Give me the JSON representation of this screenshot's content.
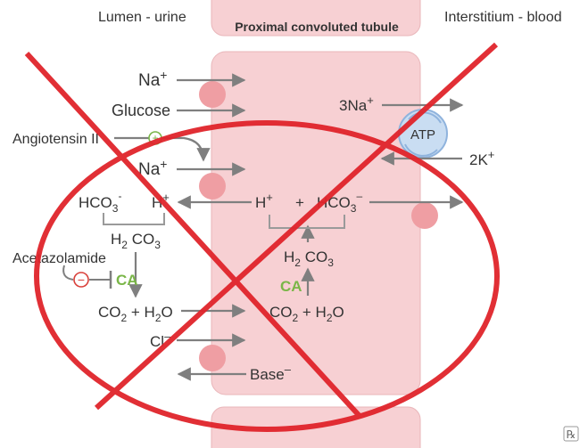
{
  "header": {
    "lumen": "Lumen - urine",
    "tubule": "Proximal convoluted tubule",
    "interstitium": "Interstitium - blood"
  },
  "labels": {
    "na1": "Na",
    "na1_sup": "+",
    "glucose": "Glucose",
    "angiotensin": "Angiotensin II",
    "na2": "Na",
    "na2_sup": "+",
    "hco3_left": "HCO",
    "hco3_left_sub": "3",
    "hco3_left_sup": "-",
    "h_left": "H",
    "h_left_sup": "+",
    "h2co3_left_a": "H",
    "h2co3_left_b": "2",
    "h2co3_left_c": " CO",
    "h2co3_left_d": "3",
    "acetazolamide": "Acetazolamide",
    "ca_left": "CA",
    "co2_left_a": "CO",
    "co2_left_b": "2",
    "co2_left_c": " + H",
    "co2_left_d": "2",
    "co2_left_e": "O",
    "cl": "Cl",
    "cl_sup": "–",
    "base": "Base",
    "base_sup": "–",
    "h_right": "H",
    "h_right_sup": "+",
    "plus": "+",
    "hco3_right": "HCO",
    "hco3_right_sub": "3",
    "hco3_right_sup": "–",
    "h2co3_right_a": "H",
    "h2co3_right_b": "2",
    "h2co3_right_c": " CO",
    "h2co3_right_d": "3",
    "ca_right": "CA",
    "co2_right_a": "CO",
    "co2_right_b": "2",
    "co2_right_c": " + H",
    "co2_right_d": "2",
    "co2_right_e": "O",
    "na3": "3Na",
    "na3_sup": "+",
    "atp": "ATP",
    "k2": "2K",
    "k2_sup": "+",
    "inhibit_symbol": "−",
    "stimulate_symbol": "+",
    "rx": "℞"
  },
  "colors": {
    "tubule_fill": "#f7d0d3",
    "tubule_stroke": "#e9b6ba",
    "transporter": "#ef9ea3",
    "arrow": "#7f7f7f",
    "ca_green": "#7ab648",
    "inhibit_red": "#d9403a",
    "cross_red": "#e0242b",
    "atp_fill": "#c9ddf2",
    "atp_stroke": "#8fb3dd"
  }
}
